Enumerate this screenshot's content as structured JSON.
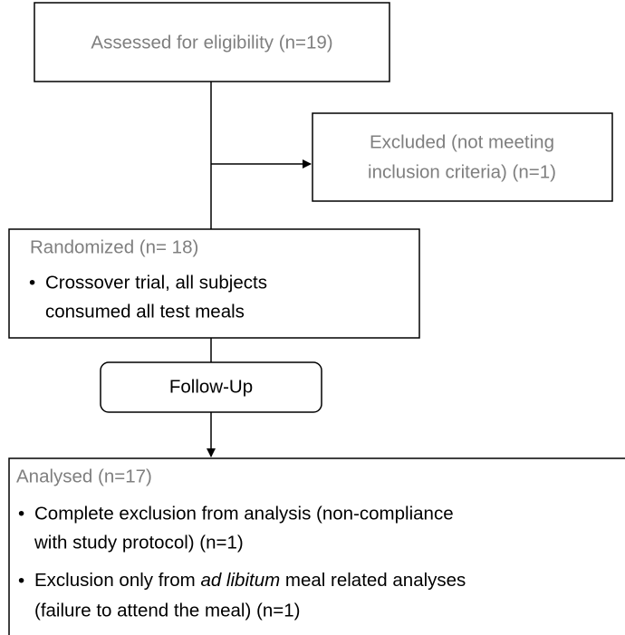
{
  "nodes": [
    {
      "label": "Assessed for eligibility (n=19)"
    },
    {
      "lines": [
        "Excluded (not meeting",
        "inclusion criteria) (n=1)"
      ]
    },
    {
      "label": "Randomized (n= 18)",
      "bullets": [
        [
          "Crossover trial, all subjects",
          "consumed all test meals"
        ]
      ]
    },
    {
      "label": "Follow-Up"
    },
    {
      "label": "Analysed (n=17)",
      "bullets": [
        [
          "Complete exclusion from analysis (non-compliance",
          "with study protocol) (n=1)"
        ],
        [
          [
            "Exclusion only from ",
            "ad libitum",
            " meal related analyses"
          ],
          "(failure to attend the meal) (n=1)"
        ]
      ]
    }
  ]
}
